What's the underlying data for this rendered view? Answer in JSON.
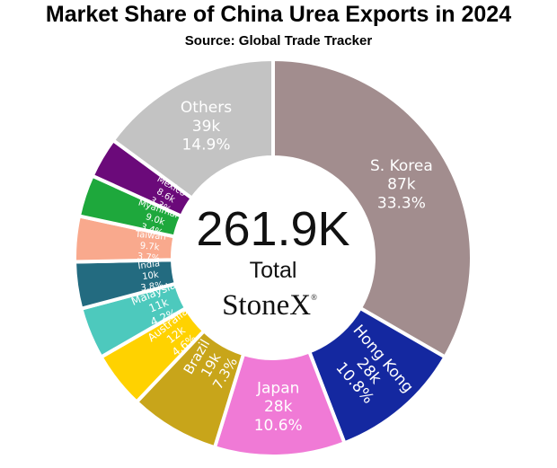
{
  "chart_data": {
    "type": "pie",
    "title": "Market Share of China Urea Exports in 2024",
    "subtitle": "Source: Global Trade Tracker",
    "center": {
      "value": "261.9K",
      "label": "Total",
      "brand": "StoneX",
      "brand_mark": "®"
    },
    "slices": [
      {
        "name": "S. Korea",
        "value_label": "87k",
        "percent_label": "33.3%",
        "percent": 33.3,
        "color": "#a28d8e"
      },
      {
        "name": "Hong Kong",
        "value_label": "28k",
        "percent_label": "10.8%",
        "percent": 10.8,
        "color": "#1428a0"
      },
      {
        "name": "Japan",
        "value_label": "28k",
        "percent_label": "10.6%",
        "percent": 10.6,
        "color": "#f07ad6"
      },
      {
        "name": "Brazil",
        "value_label": "19k",
        "percent_label": "7.3%",
        "percent": 7.3,
        "color": "#c8a51a"
      },
      {
        "name": "Australia",
        "value_label": "12k",
        "percent_label": "4.6%",
        "percent": 4.6,
        "color": "#ffd200"
      },
      {
        "name": "Malaysia",
        "value_label": "11k",
        "percent_label": "4.2%",
        "percent": 4.2,
        "color": "#4dc9bd"
      },
      {
        "name": "India",
        "value_label": "10k",
        "percent_label": "3.8%",
        "percent": 3.8,
        "color": "#236b80"
      },
      {
        "name": "Taiwan",
        "value_label": "9.7k",
        "percent_label": "3.7%",
        "percent": 3.7,
        "color": "#f9a98d"
      },
      {
        "name": "Myanmar",
        "value_label": "9.0k",
        "percent_label": "3.4%",
        "percent": 3.4,
        "color": "#1ea83c"
      },
      {
        "name": "Mexico",
        "value_label": "8.6k",
        "percent_label": "3.3%",
        "percent": 3.3,
        "color": "#6b0a7a"
      },
      {
        "name": "Others",
        "value_label": "39k",
        "percent_label": "14.9%",
        "percent": 14.9,
        "color": "#c3c3c3"
      }
    ]
  }
}
